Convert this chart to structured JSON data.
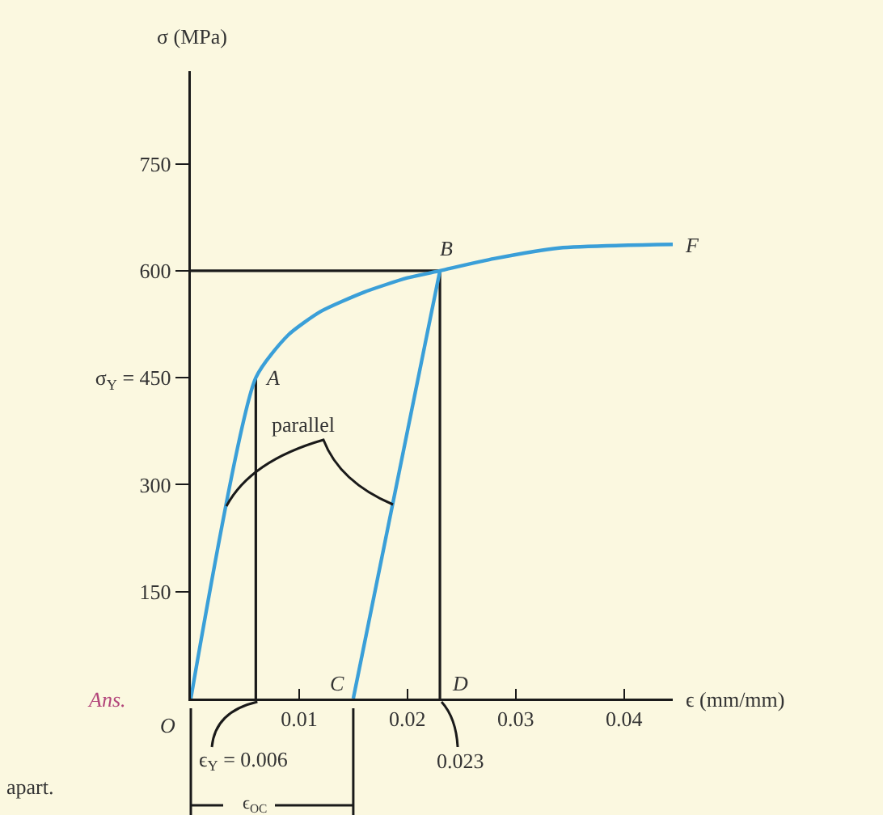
{
  "chart_data": {
    "type": "line",
    "xlabel": "ϵ (mm/mm)",
    "ylabel": "σ (MPa)",
    "xlim": [
      0,
      0.0445
    ],
    "ylim": [
      0,
      880
    ],
    "xticks": [
      0.01,
      0.02,
      0.03,
      0.04
    ],
    "yticks": [
      150,
      300,
      {
        "value": 450,
        "label": "σ$_{Y}$ = 450"
      },
      600,
      750
    ],
    "series": [
      {
        "color": "#3a9fd8",
        "x": [
          0,
          0.006,
          0.009,
          0.012,
          0.016,
          0.02,
          0.023,
          0.028,
          0.034,
          0.0445
        ],
        "values": [
          0,
          450,
          510,
          543,
          570,
          590,
          600,
          617,
          632,
          637
        ]
      },
      {
        "color": "#3a9fd8",
        "x": [
          0.015,
          0.023
        ],
        "values": [
          0,
          600
        ]
      }
    ],
    "ref_lines": [
      {
        "axis": "x",
        "value": 0.006,
        "color": "#1a1a1a"
      },
      {
        "axis": "x",
        "value": 0.023,
        "color": "#1a1a1a"
      },
      {
        "axis": "y",
        "value": 600,
        "color": "#1a1a1a"
      }
    ],
    "annotations": [
      {
        "text": "O",
        "x": 0,
        "y": 0
      },
      {
        "text": "A",
        "x": 0.006,
        "y": 450
      },
      {
        "text": "B",
        "x": 0.023,
        "y": 600
      },
      {
        "text": "F",
        "x": 0.0445,
        "y": 637
      },
      {
        "text": "C",
        "x": 0.015,
        "y": 0
      },
      {
        "text": "D",
        "x": 0.023,
        "y": 0
      },
      "parallel",
      {
        "text": "ϵ$_{Y}$ = 0.006",
        "x": 0.006,
        "y": 0
      },
      {
        "text": "0.023",
        "x": 0.023,
        "y": 0
      },
      "ϵ$_{OC}$",
      "Ans.",
      "apart."
    ],
    "grid": false,
    "marker": "none",
    "line_style": "solid"
  }
}
